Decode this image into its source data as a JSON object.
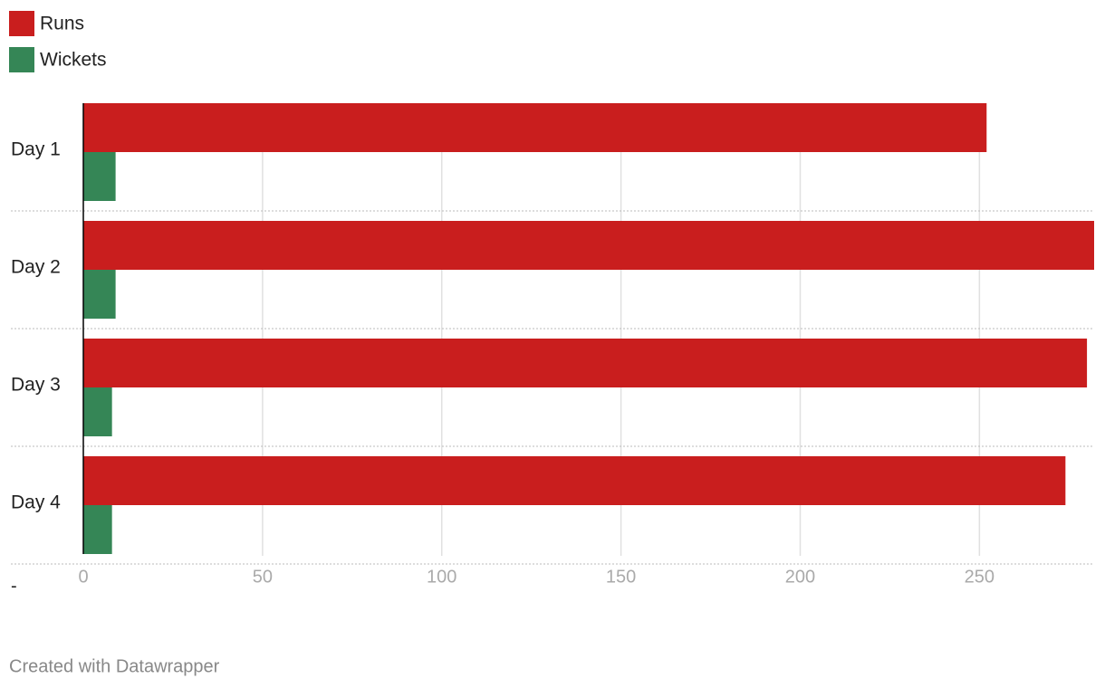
{
  "chart_data": {
    "type": "bar",
    "orientation": "horizontal",
    "categories": [
      "Day 1",
      "Day 2",
      "Day 3",
      "Day 4"
    ],
    "series": [
      {
        "name": "Runs",
        "color": "#c91e1e",
        "values": [
          252,
          282,
          280,
          274
        ]
      },
      {
        "name": "Wickets",
        "color": "#358656",
        "values": [
          9,
          9,
          8,
          8
        ]
      }
    ],
    "xlim": [
      0,
      282
    ],
    "xticks": [
      0,
      50,
      100,
      150,
      200,
      250
    ],
    "grid": true,
    "xlabel": "-",
    "footer": "Created with Datawrapper"
  }
}
